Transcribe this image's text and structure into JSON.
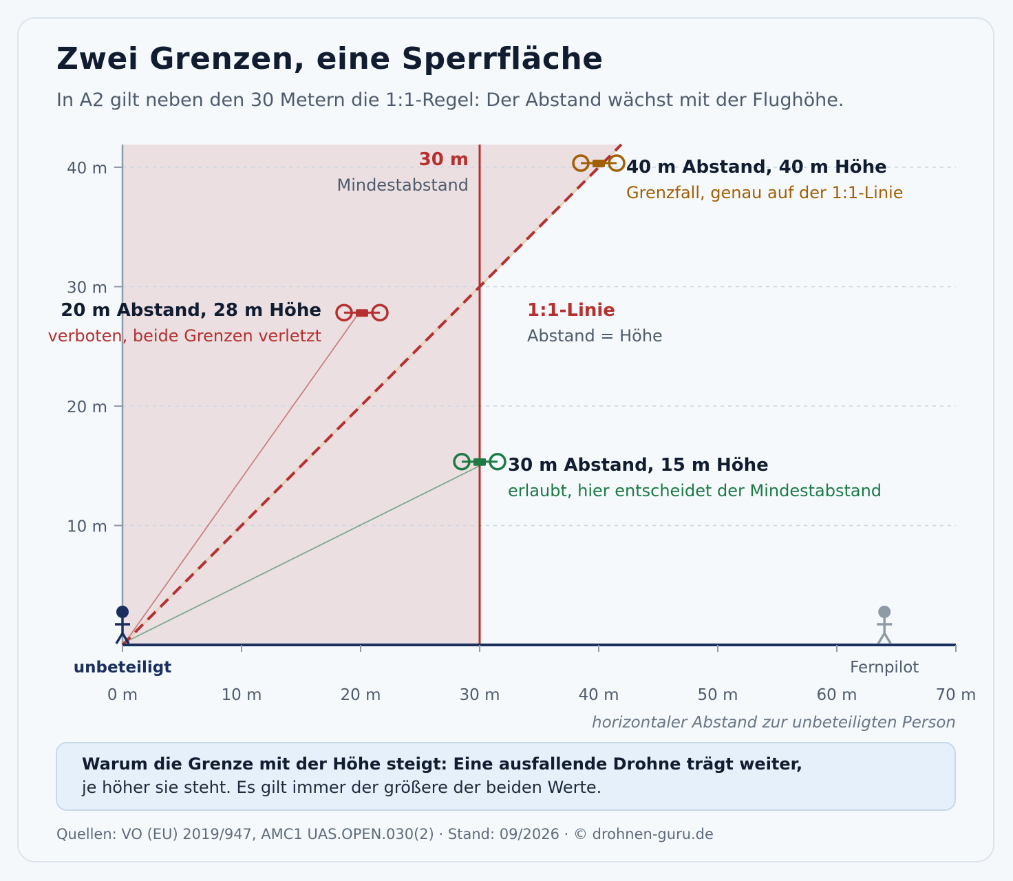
{
  "header": {
    "title": "Zwei Grenzen, eine Sperrfläche",
    "subtitle": "In A2 gilt neben den 30 Metern die 1:1-Regel: Der Abstand wächst mit der Flughöhe."
  },
  "chart_data": {
    "type": "line",
    "xlabel": "horizontaler Abstand zur unbeteiligten Person",
    "ylabel": "",
    "xlim": [
      0,
      70
    ],
    "ylim": [
      0,
      40
    ],
    "x_ticks": [
      0,
      10,
      20,
      30,
      40,
      50,
      60,
      70
    ],
    "x_tick_labels": [
      "0 m",
      "10 m",
      "20 m",
      "30 m",
      "40 m",
      "50 m",
      "60 m",
      "70 m"
    ],
    "y_ticks": [
      10,
      20,
      30,
      40
    ],
    "y_tick_labels": [
      "10 m",
      "20 m",
      "30 m",
      "40 m"
    ],
    "grid": "horizontal dashed",
    "min_distance": {
      "x": 30,
      "value_label": "30 m",
      "caption": "Mindestabstand",
      "color": "#b5302e"
    },
    "ratio_line": {
      "slope": 1,
      "label": "1:1-Linie",
      "caption": "Abstand = Höhe",
      "color": "#b5302e"
    },
    "restricted_area_color": "#ebdfe2",
    "drones": [
      {
        "x": 20,
        "y": 28,
        "label": "20 m Abstand, 28 m Höhe",
        "status": "verboten, beide Grenzen verletzt",
        "color": "#b5302e"
      },
      {
        "x": 30,
        "y": 15,
        "label": "30 m Abstand, 15 m Höhe",
        "status": "erlaubt, hier entscheidet der Mindestabstand",
        "color": "#1d7a45"
      },
      {
        "x": 40,
        "y": 40,
        "label": "40 m Abstand, 40 m Höhe",
        "status": "Grenzfall, genau auf der 1:1-Linie",
        "color": "#a25f04"
      }
    ],
    "persons": [
      {
        "x": 0,
        "label": "unbeteiligt",
        "color": "#1a2f5e"
      },
      {
        "x": 64,
        "label": "Fernpilot",
        "color": "#8f9aa7"
      }
    ]
  },
  "note": {
    "bold": "Warum die Grenze mit der Höhe steigt: Eine ausfallende Drohne trägt weiter,",
    "text": "je höher sie steht. Es gilt immer der größere der beiden Werte."
  },
  "footer": {
    "text": "Quellen: VO (EU) 2019/947, AMC1 UAS.OPEN.030(2) · Stand: 09/2026 · © drohnen-guru.de"
  }
}
